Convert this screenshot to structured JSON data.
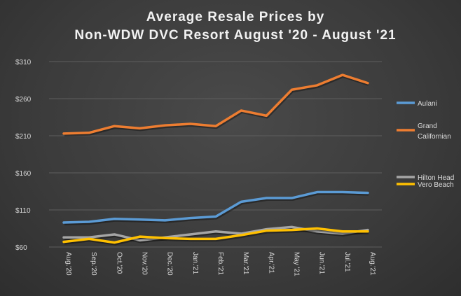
{
  "chart_data": {
    "type": "line",
    "title": [
      "Average Resale Prices by",
      "Non-WDW  DVC Resort August '20 - August '21"
    ],
    "xlabel": "",
    "ylabel": "",
    "ylim": [
      60,
      310
    ],
    "yticks": [
      "$60",
      "$110",
      "$160",
      "$210",
      "$260",
      "$310"
    ],
    "ytick_values": [
      60,
      110,
      160,
      210,
      260,
      310
    ],
    "grid": true,
    "legend_position": "right",
    "categories": [
      "Aug.'20",
      "Sep.'20",
      "Oct.'20",
      "Nov.'20",
      "Dec.'20",
      "Jan.'21",
      "Feb.'21",
      "Mar.'21",
      "Apr.'21",
      "May '21",
      "Jun.'21",
      "Jul.'21",
      "Aug.'21"
    ],
    "series": [
      {
        "name": "Aulani",
        "legend": [
          "Aulani"
        ],
        "color": "#5b9bd5",
        "values": [
          93,
          94,
          98,
          97,
          96,
          99,
          101,
          121,
          126,
          126,
          134,
          134,
          133
        ]
      },
      {
        "name": "Grand Californian",
        "legend": [
          "Grand",
          "Californian"
        ],
        "color": "#ed7d31",
        "values": [
          213,
          214,
          223,
          220,
          224,
          226,
          223,
          244,
          237,
          272,
          278,
          292,
          281
        ]
      },
      {
        "name": "Hilton Head",
        "legend": [
          "Hilton Head"
        ],
        "color": "#a5a5a5",
        "values": [
          73,
          73,
          77,
          69,
          73,
          77,
          81,
          78,
          84,
          87,
          81,
          78,
          83
        ]
      },
      {
        "name": "Vero Beach",
        "legend": [
          "Vero Beach"
        ],
        "color": "#ffc000",
        "values": [
          67,
          71,
          66,
          74,
          72,
          71,
          71,
          76,
          82,
          83,
          85,
          81,
          81
        ]
      }
    ]
  }
}
